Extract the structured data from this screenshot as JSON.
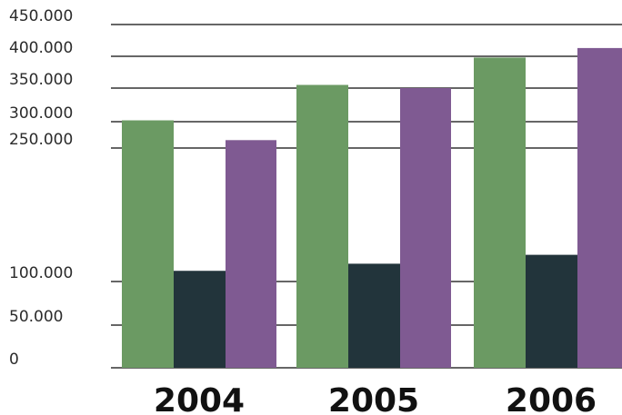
{
  "chart_data": {
    "type": "bar",
    "title": "",
    "xlabel": "",
    "ylabel": "",
    "categories": [
      "2004",
      "2005",
      "2006"
    ],
    "series": [
      {
        "color": "#6b9a63",
        "values": [
          302000,
          355000,
          398000
        ]
      },
      {
        "color": "#22343b",
        "values": [
          112000,
          120000,
          130000
        ]
      },
      {
        "color": "#7f5a92",
        "values": [
          265000,
          350000,
          413000
        ]
      }
    ],
    "y_ticks": [
      {
        "value": 0,
        "label": "0"
      },
      {
        "value": 50000,
        "label": "50.000"
      },
      {
        "value": 100000,
        "label": "100.000"
      },
      {
        "value": 250000,
        "label": "250.000"
      },
      {
        "value": 300000,
        "label": "300.000"
      },
      {
        "value": 350000,
        "label": "350.000"
      },
      {
        "value": 400000,
        "label": "400.000"
      },
      {
        "value": 450000,
        "label": "450.000"
      }
    ],
    "ylim": [
      0,
      450000
    ],
    "grid": true,
    "gridline_color": "#333333",
    "legend": "none"
  }
}
